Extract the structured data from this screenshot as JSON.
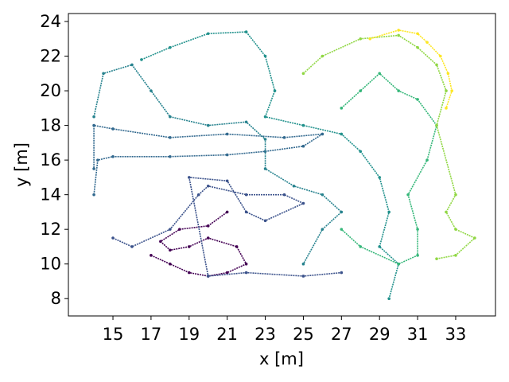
{
  "chart_data": {
    "type": "scatter",
    "xlabel": "x [m]",
    "ylabel": "y [m]",
    "xlim": [
      12.66,
      35.09
    ],
    "ylim": [
      7.0,
      24.46
    ],
    "xticks": [
      15,
      17,
      19,
      21,
      23,
      25,
      27,
      29,
      31,
      33
    ],
    "yticks": [
      8,
      10,
      12,
      14,
      16,
      18,
      20,
      22,
      24
    ],
    "series": [
      {
        "color": "#440154",
        "x": [
          17,
          18,
          19,
          20,
          21,
          22,
          21.5,
          20,
          19,
          18,
          17.5,
          18.5,
          20,
          21
        ],
        "values": [
          10.5,
          10,
          9.5,
          9.3,
          9.5,
          10,
          11,
          11.5,
          11,
          10.8,
          11.3,
          12,
          12.2,
          13
        ]
      },
      {
        "color": "#3b528b",
        "x": [
          15,
          16,
          18,
          19.5,
          20,
          22,
          24,
          25,
          23,
          22,
          21,
          19,
          20,
          22,
          25,
          27
        ],
        "values": [
          11.5,
          11,
          12,
          14,
          14.5,
          14,
          14,
          13.5,
          12.5,
          13,
          14.8,
          15,
          9.3,
          9.5,
          9.3,
          9.5
        ]
      },
      {
        "color": "#31688e",
        "x": [
          14,
          14.2,
          15,
          18,
          21,
          23,
          25,
          26,
          24,
          21,
          18,
          15,
          14,
          14
        ],
        "values": [
          14,
          16,
          16.2,
          16.2,
          16.3,
          16.5,
          16.8,
          17.5,
          17.3,
          17.5,
          17.3,
          17.8,
          18,
          15.5
        ]
      },
      {
        "color": "#26828e",
        "x": [
          14,
          14.5,
          16,
          17,
          18,
          20,
          22,
          23,
          23,
          24.5,
          26,
          27,
          26,
          25
        ],
        "values": [
          18.5,
          21,
          21.5,
          20,
          18.5,
          18,
          18.2,
          17.2,
          15.5,
          14.5,
          14,
          13,
          12,
          10
        ]
      },
      {
        "color": "#21918c",
        "x": [
          16.5,
          18,
          20,
          22,
          23,
          23.5,
          23,
          25,
          27,
          28,
          29,
          29.5,
          29,
          30,
          29.5
        ],
        "values": [
          21.8,
          22.5,
          23.3,
          23.4,
          22,
          20,
          18.5,
          18,
          17.5,
          16.5,
          15,
          13,
          11,
          10,
          8
        ]
      },
      {
        "color": "#35b779",
        "x": [
          27,
          28,
          29,
          30,
          31,
          32,
          31.5,
          30.5,
          31,
          31,
          30,
          28,
          27
        ],
        "values": [
          19,
          20,
          21,
          20,
          19.5,
          18,
          16,
          14,
          12,
          10.5,
          10,
          11,
          12
        ]
      },
      {
        "color": "#90d743",
        "x": [
          25,
          26,
          28,
          30,
          31,
          32,
          32.5,
          32,
          33,
          32.5,
          33,
          34,
          33,
          32
        ],
        "values": [
          21,
          22,
          23,
          23.2,
          22.5,
          21.5,
          20,
          18,
          14,
          13,
          12,
          11.5,
          10.5,
          10.3
        ]
      },
      {
        "color": "#fde725",
        "x": [
          28.5,
          30,
          31,
          31.5,
          32.2,
          32.6,
          32.8,
          32.5
        ],
        "values": [
          23,
          23.5,
          23.3,
          22.8,
          22,
          21,
          20,
          19
        ]
      }
    ]
  }
}
